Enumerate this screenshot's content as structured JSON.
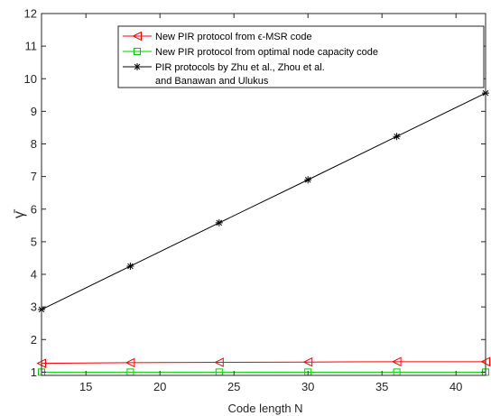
{
  "chart_data": {
    "type": "line",
    "title": "",
    "xlabel": "Code length N",
    "ylabel": "γ̄",
    "xlim": [
      12,
      42
    ],
    "ylim": [
      0.9,
      12
    ],
    "xticks": [
      15,
      20,
      25,
      30,
      35,
      40
    ],
    "yticks": [
      1,
      2,
      3,
      4,
      5,
      6,
      7,
      8,
      9,
      10,
      11,
      12
    ],
    "x": [
      12,
      18,
      24,
      30,
      36,
      42
    ],
    "grid": false,
    "legend_position": "top-right",
    "series": [
      {
        "name": "New PIR protocol from    ϵ-MSR code",
        "marker": "triangle-left",
        "color": "#ff0000",
        "values": [
          1.27,
          1.29,
          1.3,
          1.31,
          1.32,
          1.32
        ]
      },
      {
        "name": "New PIR protocol from optimal node capacity code",
        "marker": "square",
        "color": "#00cc00",
        "values": [
          1.0,
          1.0,
          1.0,
          1.0,
          1.0,
          1.0
        ]
      },
      {
        "name": "PIR protocols by Zhu et al., Zhou et al.",
        "name_line2": "and Banawan and Ulukus",
        "marker": "asterisk",
        "color": "#000000",
        "values": [
          2.92,
          4.25,
          5.58,
          6.9,
          8.23,
          9.56
        ]
      }
    ]
  }
}
